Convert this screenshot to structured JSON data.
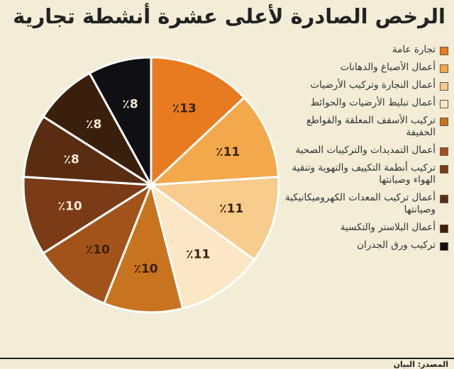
{
  "chart_data": {
    "type": "pie",
    "title": "الرخص الصادرة لأعلى عشرة أنشطة تجارية",
    "slices": [
      {
        "label": "تجارة عامة",
        "value": 13,
        "display": "٪13",
        "color": "#e87a1f"
      },
      {
        "label": "أعمال الأصباغ والدهانات",
        "value": 11,
        "display": "٪11",
        "color": "#f3a84b"
      },
      {
        "label": "أعمال النجارة وتركيب الأرضيات",
        "value": 11,
        "display": "٪11",
        "color": "#f8cc8c"
      },
      {
        "label": "أعمال تبليط الأرضيات والحوائط",
        "value": 11,
        "display": "٪11",
        "color": "#fbe6c6"
      },
      {
        "label": "تركيب الأسقف المعلقة والقواطع الخفيفة",
        "value": 10,
        "display": "٪10",
        "color": "#c8731f"
      },
      {
        "label": "أعمال التمديدات والتركيبات الصحية",
        "value": 10,
        "display": "٪10",
        "color": "#a2531a"
      },
      {
        "label": "تركيب أنظمة التكييف والتهوية وتنقية الهواء وصيانتها",
        "value": 10,
        "display": "٪10",
        "color": "#7a3b16"
      },
      {
        "label": "أعمال تركيب المعدات الكهروميكانيكية وصيانتها",
        "value": 8,
        "display": "٪8",
        "color": "#5a2d13"
      },
      {
        "label": "أعمال البلاستر والتكسية",
        "value": 8,
        "display": "٪8",
        "color": "#3a1f0d"
      },
      {
        "label": "تركيب ورق الجدران",
        "value": 8,
        "display": "٪8",
        "color": "#0f0f14"
      }
    ]
  },
  "source": "المصدر: البيان"
}
